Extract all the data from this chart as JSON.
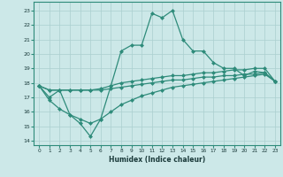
{
  "x": [
    0,
    1,
    2,
    3,
    4,
    5,
    6,
    7,
    8,
    9,
    10,
    11,
    12,
    13,
    14,
    15,
    16,
    17,
    18,
    19,
    20,
    21,
    22,
    23
  ],
  "line_jagged": [
    17.8,
    17.0,
    17.5,
    15.8,
    15.2,
    14.3,
    15.5,
    17.8,
    20.2,
    20.6,
    20.6,
    22.8,
    22.5,
    23.0,
    21.0,
    20.2,
    20.2,
    19.4,
    19.0,
    19.0,
    18.5,
    18.8,
    18.7,
    18.1
  ],
  "line_flat_upper": [
    17.8,
    17.5,
    17.5,
    17.5,
    17.5,
    17.5,
    17.6,
    17.8,
    18.0,
    18.1,
    18.2,
    18.3,
    18.4,
    18.5,
    18.5,
    18.6,
    18.7,
    18.7,
    18.8,
    18.9,
    18.9,
    19.0,
    19.0,
    18.1
  ],
  "line_flat_lower": [
    17.8,
    17.5,
    17.5,
    17.5,
    17.5,
    17.5,
    17.5,
    17.6,
    17.7,
    17.8,
    17.9,
    18.0,
    18.1,
    18.2,
    18.2,
    18.3,
    18.4,
    18.4,
    18.5,
    18.5,
    18.6,
    18.6,
    18.7,
    18.1
  ],
  "line_diagonal": [
    17.8,
    16.8,
    16.2,
    15.8,
    15.5,
    15.2,
    15.5,
    16.0,
    16.5,
    16.8,
    17.1,
    17.3,
    17.5,
    17.7,
    17.8,
    17.9,
    18.0,
    18.1,
    18.2,
    18.3,
    18.4,
    18.5,
    18.6,
    18.1
  ],
  "color": "#2e8b7a",
  "bg_color": "#cce8e8",
  "grid_color": "#aacfcf",
  "xlabel": "Humidex (Indice chaleur)",
  "yticks": [
    14,
    15,
    16,
    17,
    18,
    19,
    20,
    21,
    22,
    23
  ],
  "xlim": [
    -0.5,
    23.5
  ],
  "ylim": [
    13.7,
    23.6
  ]
}
